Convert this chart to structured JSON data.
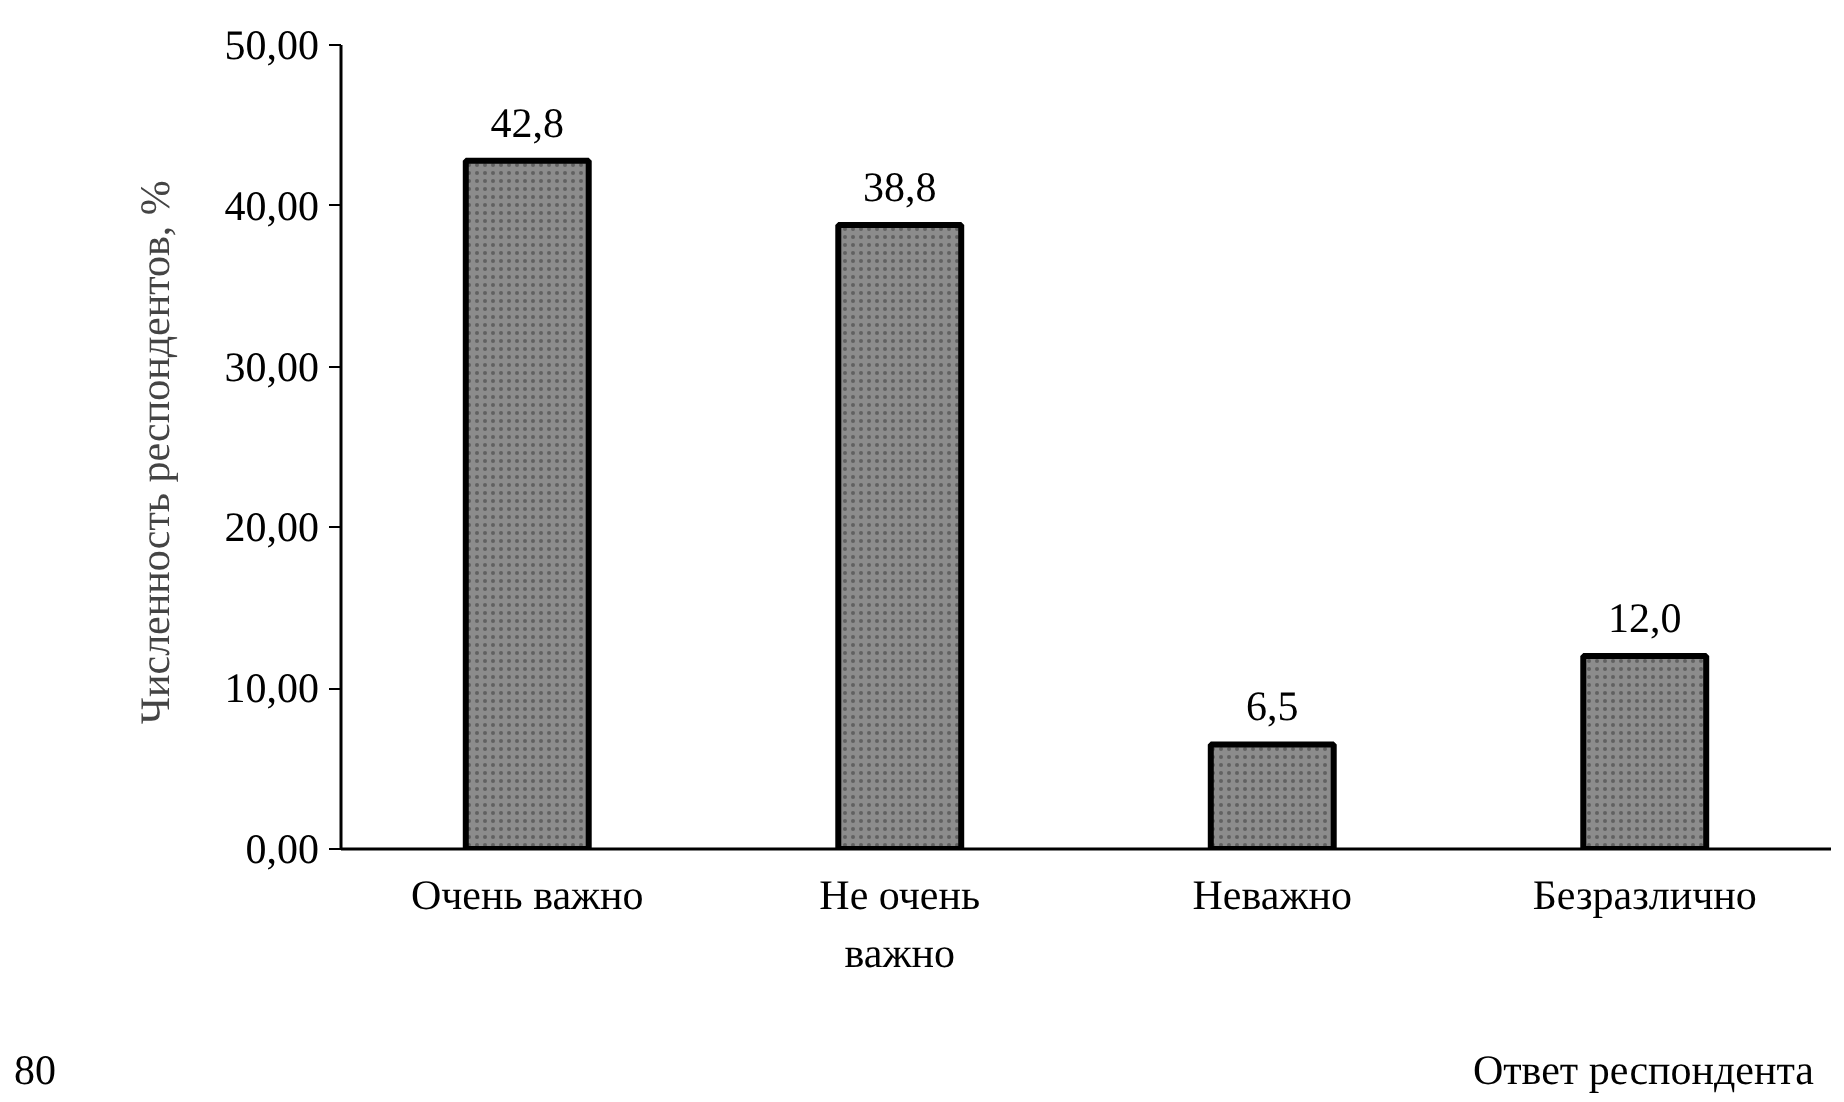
{
  "chart_data": {
    "type": "bar",
    "categories": [
      "Очень важно",
      "Не очень\nважно",
      "Неважно",
      "Безразлично"
    ],
    "values": [
      42.8,
      38.8,
      6.5,
      12.0
    ],
    "value_labels": [
      "42,8",
      "38,8",
      "6,5",
      "12,0"
    ],
    "color": "#8c8c8c",
    "ylabel": "Численность  респондентов, %",
    "xlabel": "Ответ респондента",
    "ylim": [
      0,
      50
    ],
    "yticks": [
      {
        "value": 0,
        "label": "0,00"
      },
      {
        "value": 10,
        "label": "10,00"
      },
      {
        "value": 20,
        "label": "20,00"
      },
      {
        "value": 30,
        "label": "30,00"
      },
      {
        "value": 40,
        "label": "40,00"
      },
      {
        "value": 50,
        "label": "50,00"
      }
    ],
    "grid": false,
    "annotations": [
      "80"
    ]
  }
}
